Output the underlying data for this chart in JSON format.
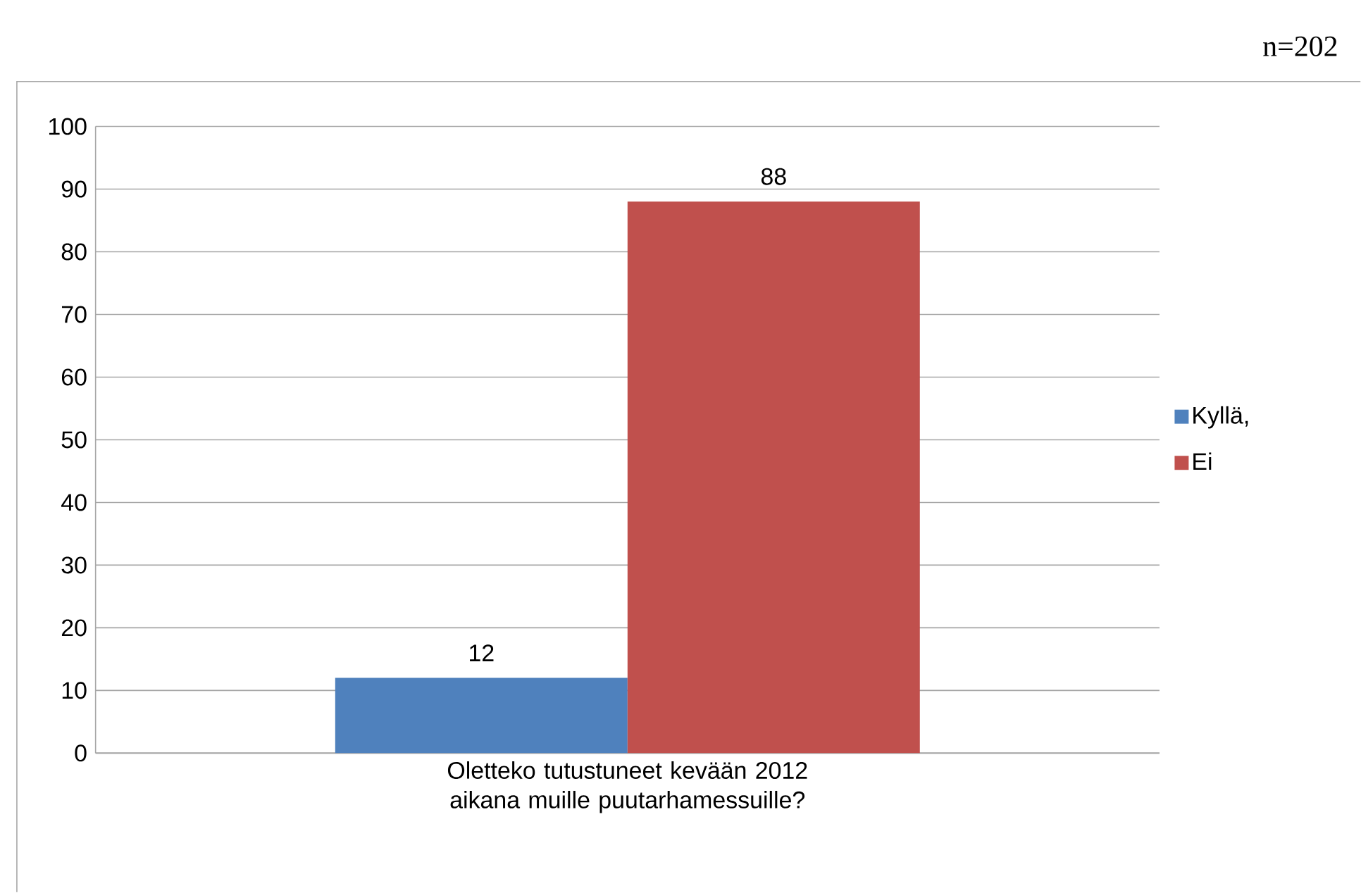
{
  "chart_data": {
    "type": "bar",
    "categories": [
      "Oletteko tutustuneet kevään 2012 aikana muille puutarhamessuille?"
    ],
    "series": [
      {
        "name": "Kyllä,",
        "color": "#4f81bd",
        "values": [
          12
        ]
      },
      {
        "name": "Ei",
        "color": "#c0504d",
        "values": [
          88
        ]
      }
    ],
    "ylim": [
      0,
      100
    ],
    "yticks": [
      0,
      10,
      20,
      30,
      40,
      50,
      60,
      70,
      80,
      90,
      100
    ],
    "grid": "y",
    "legend": "right",
    "data_labels": true,
    "annotations": [
      "n=202"
    ]
  }
}
